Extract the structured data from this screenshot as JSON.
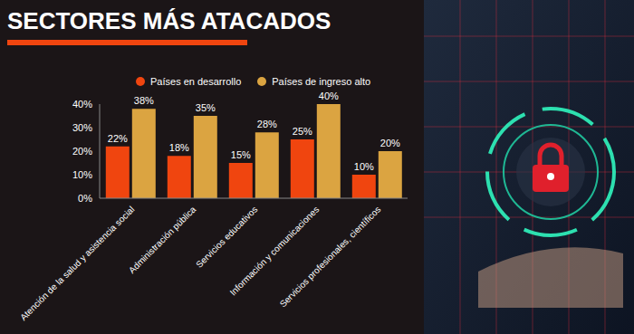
{
  "chart_data": {
    "type": "bar",
    "title": "SECTORES MÁS ATACADOS",
    "categories": [
      "Atención de la salud y asistencia social",
      "Administración pública",
      "Servicios educativos",
      "Información y comunicaciones",
      "Servicios profesionales, científicos"
    ],
    "series": [
      {
        "name": "Países en desarrollo",
        "color": "#f0450f",
        "values": [
          22,
          18,
          15,
          25,
          10
        ],
        "value_labels": [
          "22%",
          "18%",
          "15%",
          "25%",
          "10%"
        ]
      },
      {
        "name": "Países de ingreso alto",
        "color": "#dba441",
        "values": [
          38,
          35,
          28,
          40,
          20
        ],
        "value_labels": [
          "38%",
          "35%",
          "28%",
          "40%",
          "20%"
        ]
      }
    ],
    "ylim": [
      0,
      40
    ],
    "yticks": [
      {
        "value": 0,
        "label": "0%"
      },
      {
        "value": 10,
        "label": "10%"
      },
      {
        "value": 20,
        "label": "20%"
      },
      {
        "value": 30,
        "label": "30%"
      },
      {
        "value": 40,
        "label": "40%"
      }
    ],
    "grid": false,
    "data_labels": true,
    "legend": "top"
  }
}
